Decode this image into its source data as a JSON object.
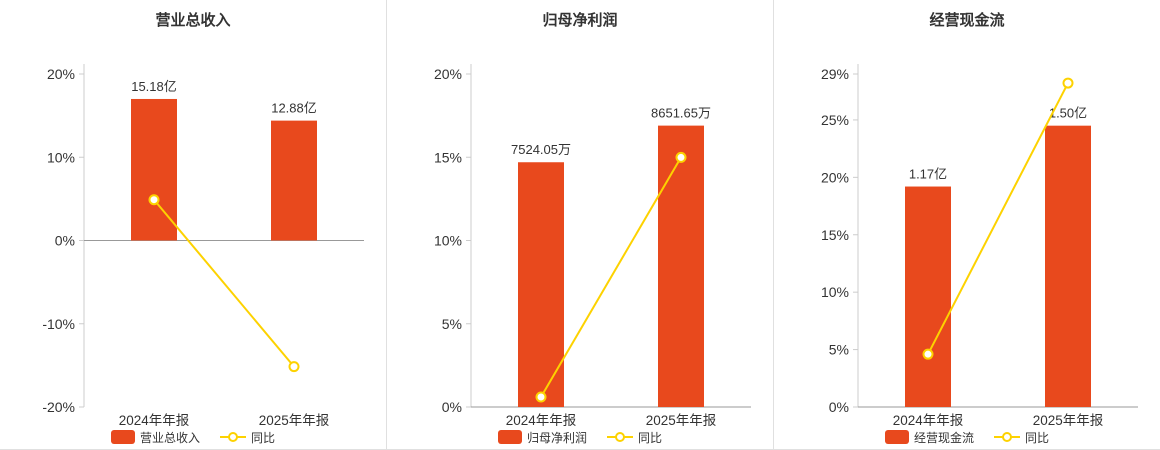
{
  "colors": {
    "bar": "#e8491d",
    "line": "#fdd200",
    "title": "#333333",
    "tick_text": "#333333",
    "axis_line": "#cccccc",
    "zero_line": "#999999",
    "bar_label": "#333333",
    "divider": "#e0e0e0",
    "background": "#ffffff"
  },
  "chart_data": [
    {
      "type": "bar+line",
      "title": "营业总收入",
      "categories": [
        "2024年年报",
        "2025年年报"
      ],
      "bar_series": "营业总收入",
      "line_series": "同比",
      "bar_labels": [
        "15.18亿",
        "12.88亿"
      ],
      "bar_plot_pct": [
        17.0,
        14.4
      ],
      "line_values_pct": [
        4.9,
        -15.15
      ],
      "ylim": [
        -20,
        20
      ],
      "yticks": [
        -20,
        -10,
        0,
        10,
        20
      ],
      "ytick_suffix": "%",
      "grid": false,
      "legend_position": "bottom"
    },
    {
      "type": "bar+line",
      "title": "归母净利润",
      "categories": [
        "2024年年报",
        "2025年年报"
      ],
      "bar_series": "归母净利润",
      "line_series": "同比",
      "bar_labels": [
        "7524.05万",
        "8651.65万"
      ],
      "bar_plot_pct": [
        14.7,
        16.9
      ],
      "line_values_pct": [
        0.6,
        14.99
      ],
      "ylim": [
        0,
        20
      ],
      "yticks": [
        0,
        5,
        10,
        15,
        20
      ],
      "ytick_suffix": "%",
      "grid": false,
      "legend_position": "bottom"
    },
    {
      "type": "bar+line",
      "title": "经营现金流",
      "categories": [
        "2024年年报",
        "2025年年报"
      ],
      "bar_series": "经营现金流",
      "line_series": "同比",
      "bar_labels": [
        "1.17亿",
        "1.50亿"
      ],
      "bar_plot_pct": [
        19.2,
        24.5
      ],
      "line_values_pct": [
        4.6,
        28.21
      ],
      "ylim": [
        0,
        29
      ],
      "yticks": [
        0,
        5,
        10,
        15,
        20,
        25,
        29
      ],
      "ytick_suffix": "%",
      "grid": false,
      "legend_position": "bottom"
    }
  ]
}
